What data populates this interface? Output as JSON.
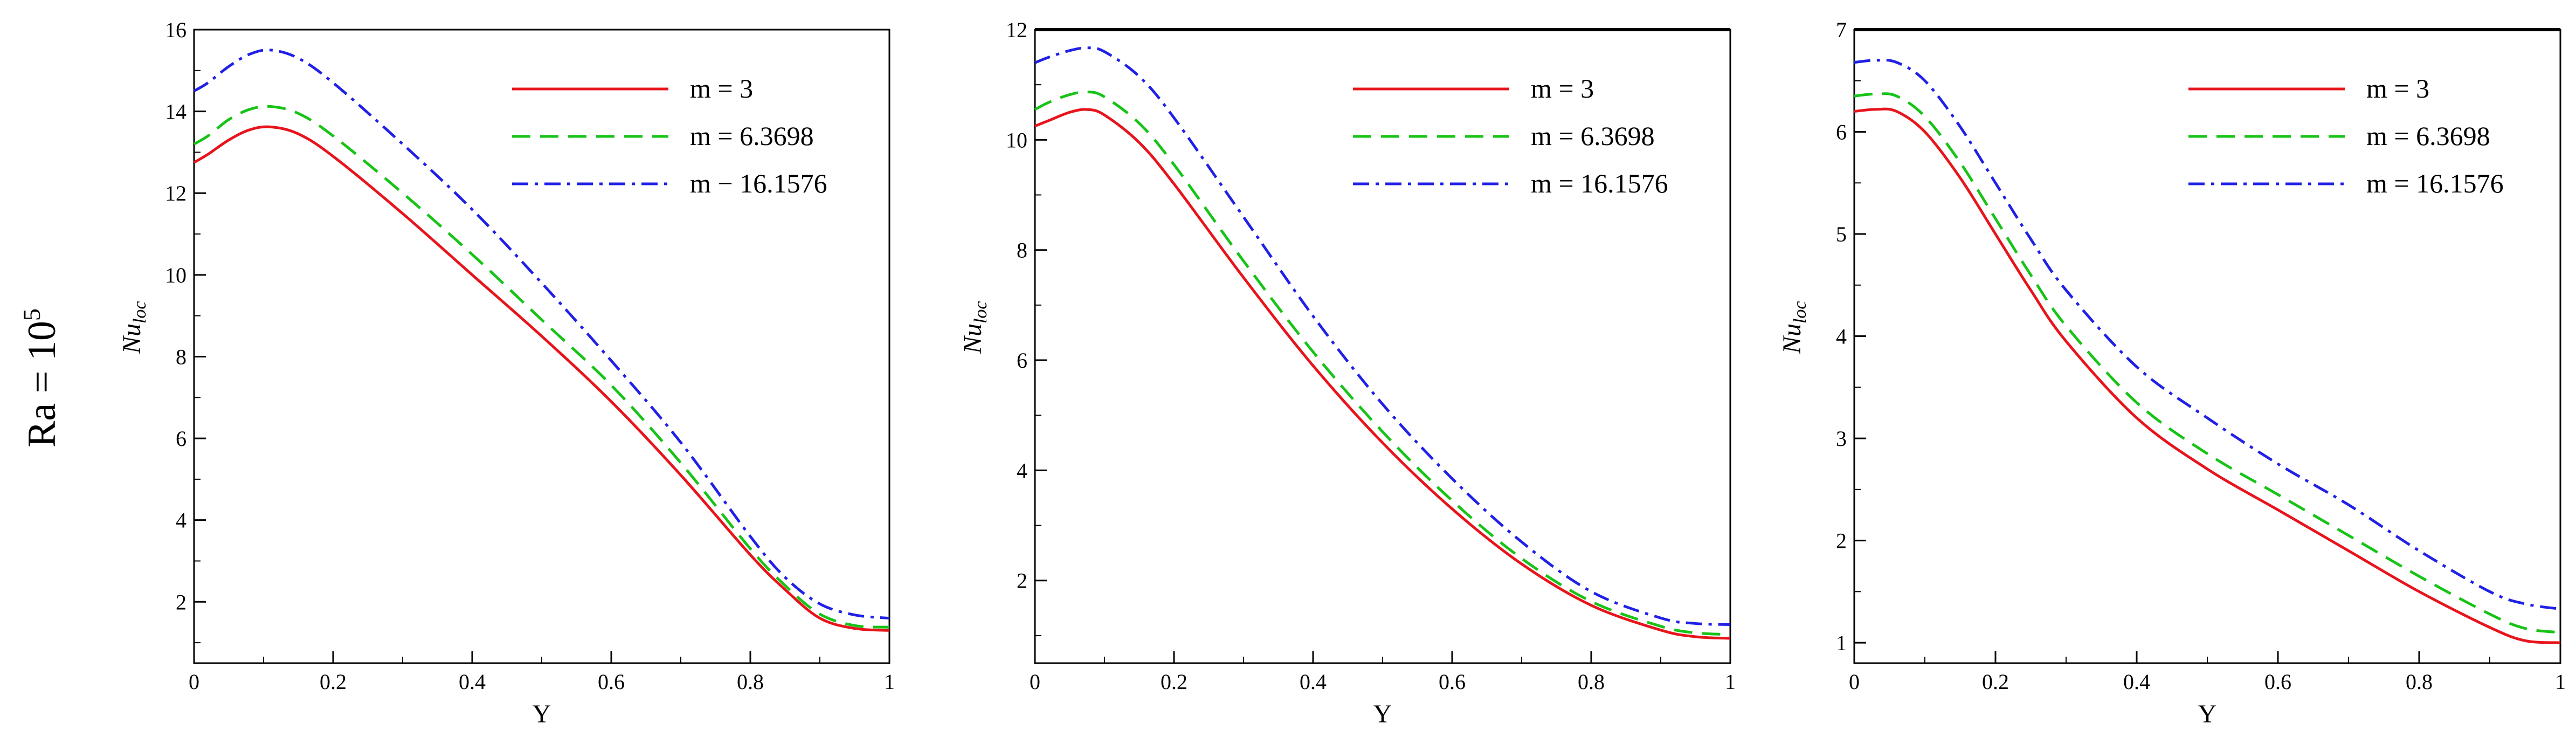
{
  "row_label": {
    "base": "Ra = 10",
    "exponent": "5"
  },
  "chart_data": [
    {
      "type": "line",
      "title": "",
      "xlabel": "Y",
      "ylabel": {
        "base": "Nu",
        "subscript": "loc"
      },
      "xlim": [
        0,
        1
      ],
      "ylim": [
        0.5,
        16
      ],
      "xticks": [
        0,
        0.2,
        0.4,
        0.6,
        0.8,
        1
      ],
      "xtick_labels": [
        "0",
        "0.2",
        "0.4",
        "0.6",
        "0.8",
        "1"
      ],
      "yticks": [
        2,
        4,
        6,
        8,
        10,
        12,
        14,
        16
      ],
      "ytick_labels": [
        "2",
        "4",
        "6",
        "8",
        "10",
        "12",
        "14",
        "16"
      ],
      "legend": "top-right",
      "series": [
        {
          "name": "m = 3",
          "color": "#e8141c",
          "style": "solid",
          "x": [
            0,
            0.02,
            0.05,
            0.08,
            0.11,
            0.15,
            0.2,
            0.3,
            0.4,
            0.5,
            0.6,
            0.7,
            0.8,
            0.85,
            0.9,
            0.95,
            1.0
          ],
          "y": [
            12.75,
            12.95,
            13.3,
            13.55,
            13.62,
            13.45,
            12.9,
            11.5,
            10.0,
            8.5,
            6.9,
            5.1,
            3.15,
            2.3,
            1.6,
            1.35,
            1.3
          ]
        },
        {
          "name": "m = 6.3698",
          "color": "#17c317",
          "style": "dashed",
          "x": [
            0,
            0.02,
            0.05,
            0.08,
            0.11,
            0.15,
            0.2,
            0.3,
            0.4,
            0.5,
            0.6,
            0.7,
            0.8,
            0.85,
            0.9,
            0.95,
            1.0
          ],
          "y": [
            13.2,
            13.4,
            13.8,
            14.05,
            14.12,
            13.95,
            13.4,
            12.0,
            10.5,
            8.9,
            7.3,
            5.4,
            3.3,
            2.4,
            1.7,
            1.42,
            1.38
          ]
        },
        {
          "name": "m − 16.1576",
          "color": "#2020e6",
          "style": "dashdot",
          "x": [
            0,
            0.02,
            0.05,
            0.08,
            0.11,
            0.15,
            0.2,
            0.3,
            0.4,
            0.5,
            0.6,
            0.7,
            0.8,
            0.85,
            0.9,
            0.95,
            1.0
          ],
          "y": [
            14.5,
            14.7,
            15.1,
            15.4,
            15.5,
            15.3,
            14.7,
            13.2,
            11.6,
            9.8,
            7.9,
            5.9,
            3.6,
            2.6,
            1.95,
            1.68,
            1.6
          ]
        }
      ]
    },
    {
      "type": "line",
      "title": "",
      "xlabel": "Y",
      "ylabel": {
        "base": "Nu",
        "subscript": "loc"
      },
      "xlim": [
        0,
        1
      ],
      "ylim": [
        0.5,
        12
      ],
      "xticks": [
        0,
        0.2,
        0.4,
        0.6,
        0.8,
        1
      ],
      "xtick_labels": [
        "0",
        "0.2",
        "0.4",
        "0.6",
        "0.8",
        "1"
      ],
      "yticks": [
        2,
        4,
        6,
        8,
        10,
        12
      ],
      "ytick_labels": [
        "2",
        "4",
        "6",
        "8",
        "10",
        "12"
      ],
      "legend": "top-right",
      "series": [
        {
          "name": "m = 3",
          "color": "#e8141c",
          "style": "solid",
          "x": [
            0,
            0.02,
            0.05,
            0.075,
            0.1,
            0.15,
            0.2,
            0.3,
            0.4,
            0.5,
            0.6,
            0.7,
            0.8,
            0.9,
            0.95,
            1.0
          ],
          "y": [
            10.25,
            10.35,
            10.5,
            10.55,
            10.45,
            9.95,
            9.2,
            7.5,
            5.9,
            4.5,
            3.3,
            2.3,
            1.55,
            1.1,
            0.98,
            0.95
          ]
        },
        {
          "name": "m = 6.3698",
          "color": "#17c317",
          "style": "dashed",
          "x": [
            0,
            0.02,
            0.05,
            0.075,
            0.1,
            0.15,
            0.2,
            0.3,
            0.4,
            0.5,
            0.6,
            0.7,
            0.8,
            0.9,
            0.95,
            1.0
          ],
          "y": [
            10.55,
            10.68,
            10.82,
            10.87,
            10.78,
            10.3,
            9.55,
            7.8,
            6.15,
            4.7,
            3.45,
            2.4,
            1.62,
            1.17,
            1.05,
            1.02
          ]
        },
        {
          "name": "m = 16.1576",
          "color": "#2020e6",
          "style": "dashdot",
          "x": [
            0,
            0.02,
            0.05,
            0.075,
            0.1,
            0.15,
            0.2,
            0.3,
            0.4,
            0.5,
            0.6,
            0.7,
            0.8,
            0.9,
            0.95,
            1.0
          ],
          "y": [
            11.4,
            11.5,
            11.62,
            11.67,
            11.6,
            11.15,
            10.4,
            8.6,
            6.8,
            5.2,
            3.85,
            2.7,
            1.8,
            1.32,
            1.22,
            1.2
          ]
        }
      ]
    },
    {
      "type": "line",
      "title": "",
      "xlabel": "Y",
      "ylabel": {
        "base": "Nu",
        "subscript": "loc"
      },
      "xlim": [
        0,
        1
      ],
      "ylim": [
        0.8,
        7
      ],
      "xticks": [
        0,
        0.2,
        0.4,
        0.6,
        0.8,
        1
      ],
      "xtick_labels": [
        "0",
        "0.2",
        "0.4",
        "0.6",
        "0.8",
        "1"
      ],
      "yticks": [
        1,
        2,
        3,
        4,
        5,
        6,
        7
      ],
      "ytick_labels": [
        "1",
        "2",
        "3",
        "4",
        "5",
        "6",
        "7"
      ],
      "legend": "top-right",
      "series": [
        {
          "name": "m = 3",
          "color": "#e8141c",
          "style": "solid",
          "x": [
            0,
            0.03,
            0.06,
            0.1,
            0.15,
            0.2,
            0.25,
            0.3,
            0.4,
            0.5,
            0.6,
            0.7,
            0.8,
            0.9,
            0.95,
            1.0
          ],
          "y": [
            6.2,
            6.22,
            6.2,
            6.0,
            5.55,
            5.0,
            4.45,
            3.95,
            3.2,
            2.7,
            2.3,
            1.9,
            1.5,
            1.15,
            1.02,
            1.0
          ]
        },
        {
          "name": "m = 6.3698",
          "color": "#17c317",
          "style": "dashed",
          "x": [
            0,
            0.03,
            0.06,
            0.1,
            0.15,
            0.2,
            0.25,
            0.3,
            0.4,
            0.5,
            0.6,
            0.7,
            0.8,
            0.9,
            0.95,
            1.0
          ],
          "y": [
            6.35,
            6.37,
            6.35,
            6.15,
            5.7,
            5.15,
            4.6,
            4.1,
            3.35,
            2.85,
            2.45,
            2.05,
            1.65,
            1.28,
            1.14,
            1.1
          ]
        },
        {
          "name": "m = 16.1576",
          "color": "#2020e6",
          "style": "dashdot",
          "x": [
            0,
            0.03,
            0.06,
            0.1,
            0.15,
            0.2,
            0.25,
            0.3,
            0.4,
            0.5,
            0.6,
            0.7,
            0.8,
            0.9,
            0.95,
            1.0
          ],
          "y": [
            6.68,
            6.7,
            6.68,
            6.5,
            6.05,
            5.5,
            4.95,
            4.45,
            3.7,
            3.2,
            2.75,
            2.35,
            1.9,
            1.5,
            1.38,
            1.33
          ]
        }
      ]
    }
  ]
}
